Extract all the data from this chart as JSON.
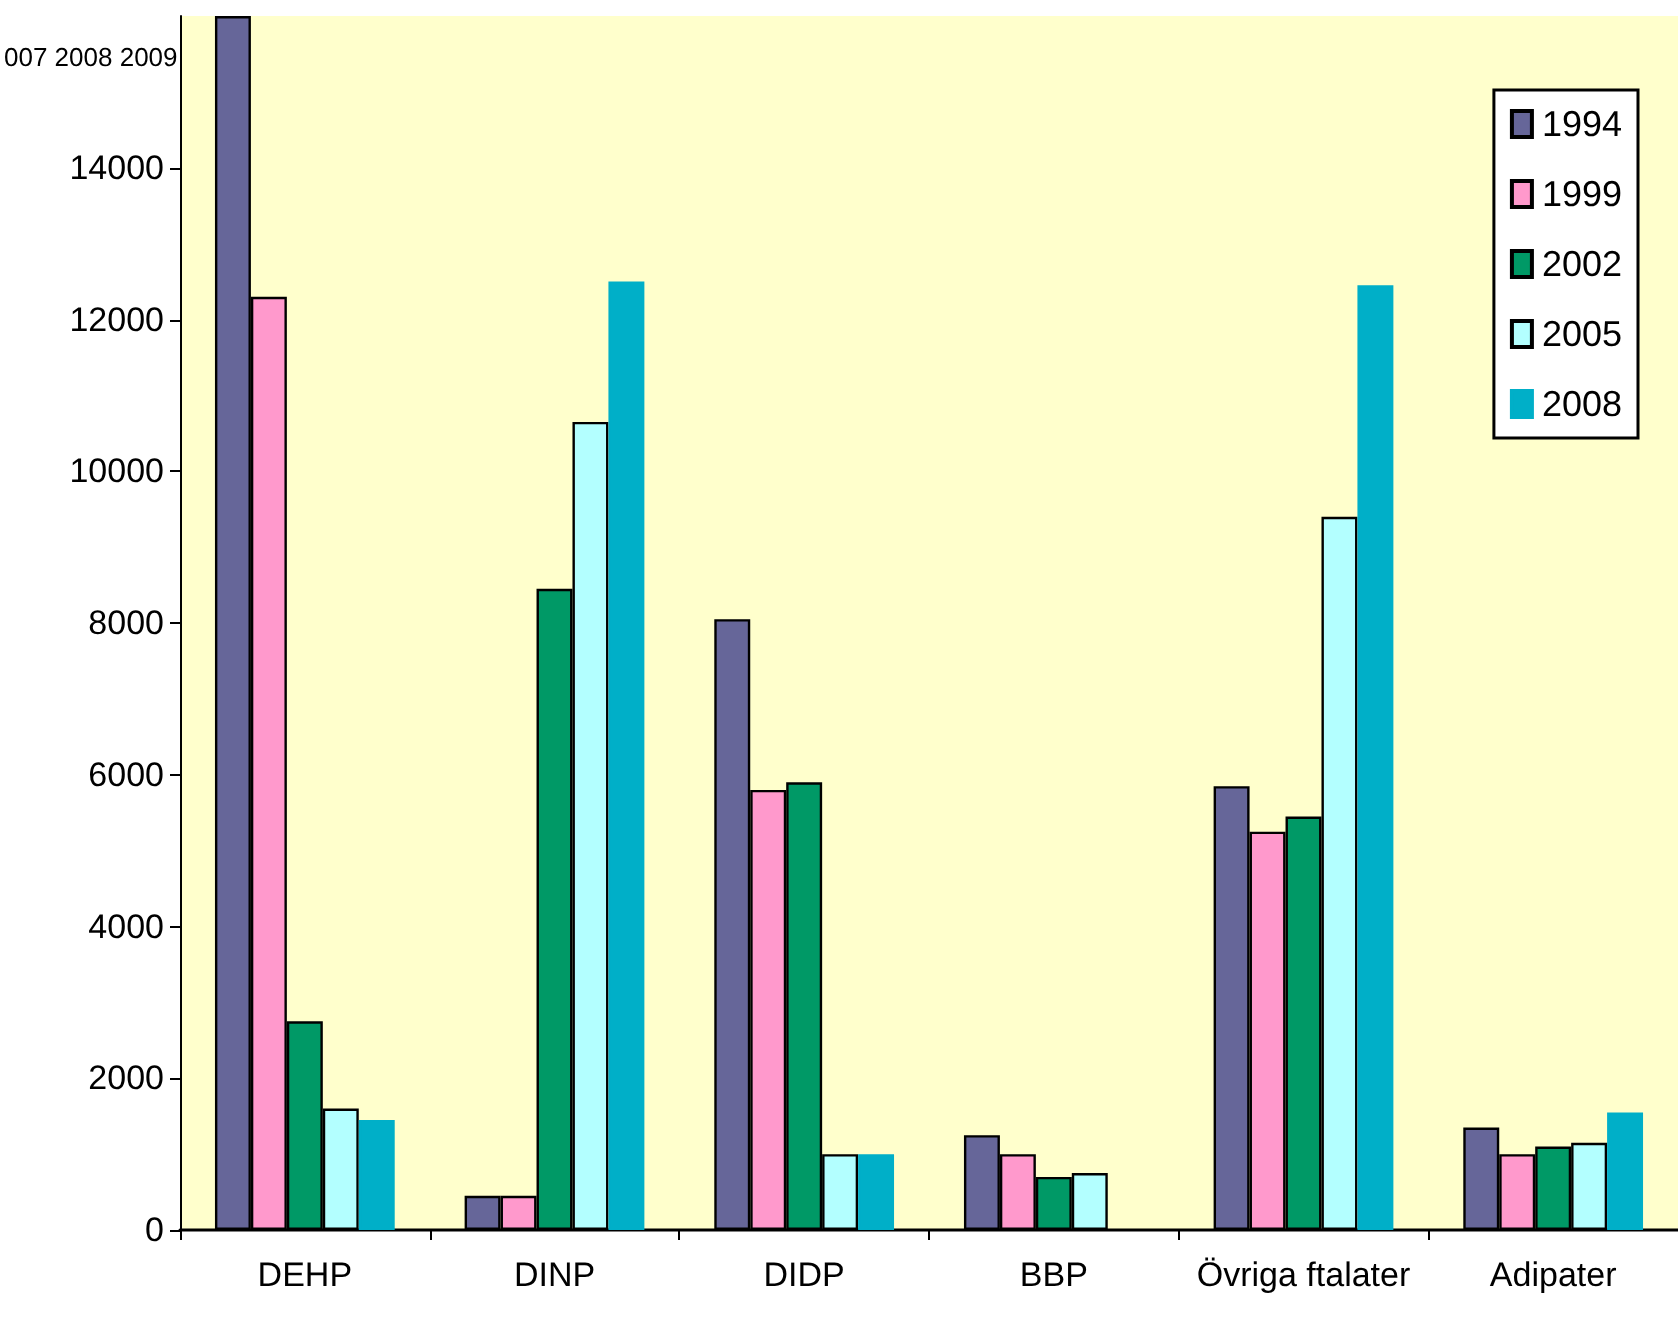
{
  "chart_data": {
    "type": "bar",
    "categories": [
      "DEHP",
      "DINP",
      "DIDP",
      "BBP",
      "Övriga ftalater",
      "Adipater"
    ],
    "series": [
      {
        "name": "1994",
        "color": "#666699",
        "values": [
          16000,
          450,
          8050,
          1250,
          5850,
          1350
        ]
      },
      {
        "name": "1999",
        "color": "#ff99cc",
        "values": [
          12300,
          450,
          5800,
          1000,
          5250,
          1000
        ]
      },
      {
        "name": "2002",
        "color": "#009966",
        "values": [
          2750,
          8450,
          5900,
          700,
          5450,
          1100
        ]
      },
      {
        "name": "2005",
        "color": "#b3ffff",
        "values": [
          1600,
          10650,
          1000,
          750,
          9400,
          1150
        ]
      },
      {
        "name": "2008",
        "color": "#00afc8",
        "values": [
          1450,
          12500,
          1000,
          null,
          12450,
          1550
        ]
      }
    ],
    "ylim": [
      0,
      16000
    ],
    "yticks": [
      0,
      2000,
      4000,
      6000,
      8000,
      10000,
      12000,
      14000
    ],
    "grid": false,
    "legend": "top right",
    "annotations": [
      "007 2008 2009"
    ]
  }
}
